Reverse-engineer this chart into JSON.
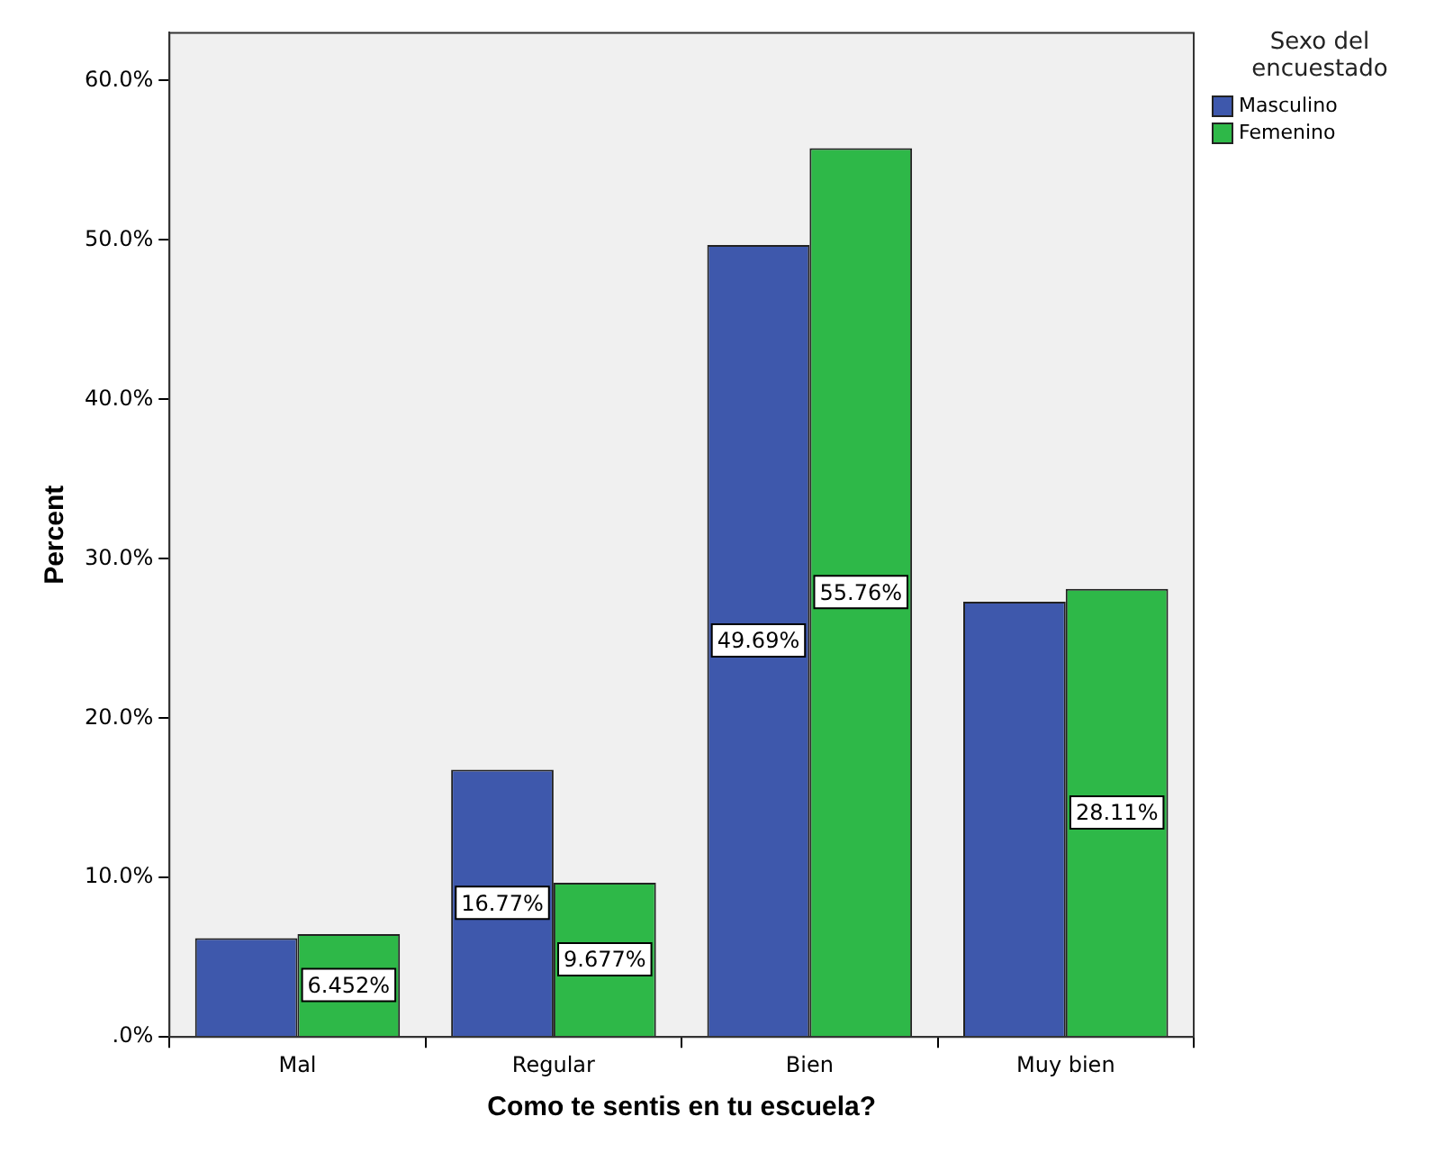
{
  "chart_data": {
    "type": "bar",
    "xlabel": "Como te sentis en tu escuela?",
    "ylabel": "Percent",
    "legend_title": "Sexo del encuestado",
    "legend": "top right",
    "grid": false,
    "categories": [
      "Mal",
      "Regular",
      "Bien",
      "Muy bien"
    ],
    "series": [
      {
        "name": "Masculino",
        "color": "#3e58ac",
        "values": [
          6.2,
          16.77,
          49.69,
          27.3
        ],
        "value_labels": [
          null,
          "16.77%",
          "49.69%",
          null
        ]
      },
      {
        "name": "Femenino",
        "color": "#2eb848",
        "values": [
          6.452,
          9.677,
          55.76,
          28.11
        ],
        "value_labels": [
          "6.452%",
          "9.677%",
          "55.76%",
          "28.11%"
        ]
      }
    ],
    "ylim": [
      0,
      63
    ],
    "yticks": [
      {
        "value": 0,
        "label": ".0%"
      },
      {
        "value": 10,
        "label": "10.0%"
      },
      {
        "value": 20,
        "label": "20.0%"
      },
      {
        "value": 30,
        "label": "30.0%"
      },
      {
        "value": 40,
        "label": "40.0%"
      },
      {
        "value": 50,
        "label": "50.0%"
      },
      {
        "value": 60,
        "label": "60.0%"
      }
    ]
  }
}
